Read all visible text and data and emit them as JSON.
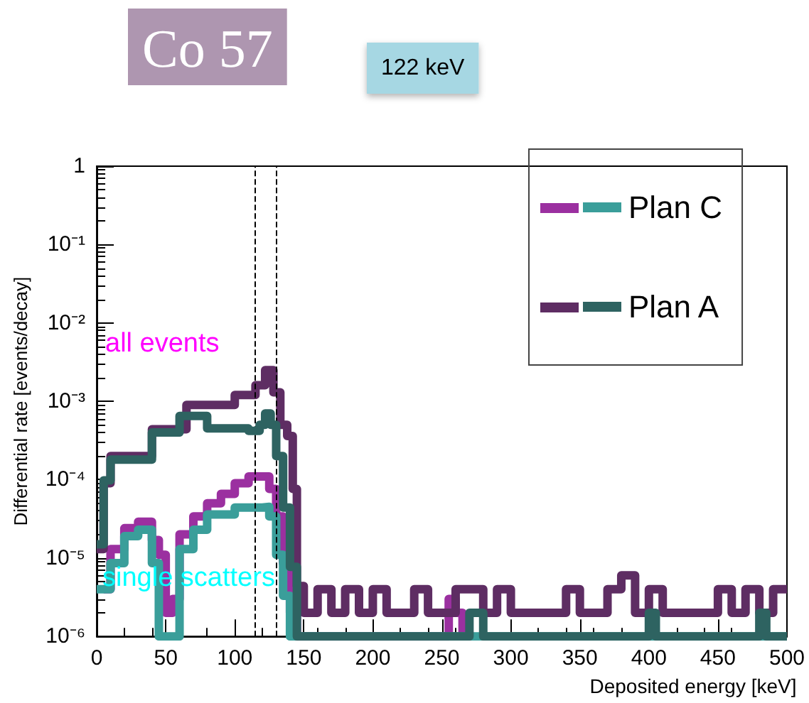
{
  "chart_data": {
    "type": "step",
    "title": "Co 57",
    "subtitle": "122 keV",
    "xlabel": "Deposited energy [keV]",
    "ylabel": "Differential rate [events/decay]",
    "annotations": [
      "all events",
      "single scatters"
    ],
    "log": "y",
    "grid": false,
    "legend": "top right",
    "marker": "none",
    "xlim": [
      0,
      500
    ],
    "xticks": [
      0,
      50,
      100,
      150,
      200,
      250,
      300,
      350,
      400,
      450,
      500
    ],
    "ylim": [
      1e-06,
      1
    ],
    "yticks": [
      {
        "value": 1e-06,
        "label": "10⁻⁶"
      },
      {
        "value": 1e-05,
        "label": "10⁻⁵"
      },
      {
        "value": 0.0001,
        "label": "10⁻⁴"
      },
      {
        "value": 0.001,
        "label": "10⁻³"
      },
      {
        "value": 0.01,
        "label": "10⁻²"
      },
      {
        "value": 0.1,
        "label": "10⁻¹"
      },
      1
    ],
    "ref_lines": [
      {
        "axis": "x",
        "value": 115,
        "color": "#000000",
        "line_style": "dashed"
      },
      {
        "axis": "x",
        "value": 130,
        "color": "#000000",
        "line_style": "dashed"
      }
    ],
    "series": [
      {
        "color": "#9b30a0",
        "x": [
          5,
          10,
          20,
          30,
          40,
          45,
          50,
          55,
          60,
          70,
          80,
          90,
          100,
          110,
          120,
          125,
          130,
          135,
          140,
          145,
          255,
          260,
          265
        ],
        "values": [
          4e-06,
          1.3e-05,
          2.4e-05,
          2.9e-05,
          1.7e-05,
          1.1e-05,
          2e-06,
          3e-06,
          2e-05,
          3.4e-05,
          5e-05,
          6.6e-05,
          9e-05,
          0.00011,
          0.00011,
          7.6e-05,
          3.4e-05,
          8.6e-06,
          2e-06,
          1e-06,
          3e-06,
          2e-06,
          1e-06
        ]
      },
      {
        "name": "Plan C",
        "color": "#3a9e9a",
        "x": [
          0,
          5,
          10,
          20,
          30,
          40,
          45,
          55,
          60,
          70,
          80,
          100,
          120,
          125,
          130,
          135,
          140,
          500
        ],
        "values": [
          4e-06,
          4e-06,
          8.6e-06,
          1.9e-05,
          2.3e-05,
          8.6e-06,
          1e-06,
          1e-06,
          1.3e-05,
          2.3e-05,
          3.6e-05,
          4.4e-05,
          4.5e-05,
          3.4e-05,
          1.1e-05,
          3.3e-06,
          1e-06,
          1e-06
        ]
      },
      {
        "color": "#5e2d63",
        "x": [
          0,
          5,
          10,
          40,
          65,
          100,
          115,
          122,
          128,
          133,
          138,
          142,
          145,
          150,
          160,
          170,
          180,
          190,
          200,
          210,
          220,
          230,
          240,
          250,
          260,
          270,
          280,
          290,
          300,
          310,
          320,
          330,
          340,
          350,
          360,
          370,
          380,
          390,
          400,
          410,
          420,
          430,
          440,
          450,
          460,
          470,
          480,
          490,
          500
        ],
        "values": [
          1.3e-05,
          9e-05,
          0.0002,
          0.00044,
          0.0009,
          0.0012,
          0.0016,
          0.0025,
          0.0013,
          0.0005,
          0.00036,
          7.6e-05,
          4.4e-06,
          2e-06,
          4e-06,
          2e-06,
          4e-06,
          2e-06,
          4e-06,
          2e-06,
          2e-06,
          4e-06,
          2e-06,
          2e-06,
          4e-06,
          4e-06,
          2e-06,
          4e-06,
          2e-06,
          2e-06,
          2e-06,
          2e-06,
          4e-06,
          2e-06,
          2e-06,
          4e-06,
          6e-06,
          2e-06,
          4e-06,
          2e-06,
          2e-06,
          2e-06,
          2e-06,
          4e-06,
          2e-06,
          4e-06,
          2e-06,
          4e-06,
          4e-06
        ]
      },
      {
        "name": "Plan A",
        "color": "#2e6361",
        "x": [
          0,
          5,
          10,
          40,
          60,
          80,
          110,
          118,
          122,
          126,
          130,
          135,
          140,
          145,
          265,
          270,
          280,
          395,
          400,
          405,
          475,
          480,
          485,
          500
        ],
        "values": [
          1.5e-05,
          9.8e-05,
          0.00018,
          0.0004,
          0.00065,
          0.00045,
          0.00042,
          0.0005,
          0.0007,
          0.0005,
          0.0002,
          4.4e-05,
          7.7e-06,
          1e-06,
          1e-06,
          2e-06,
          1e-06,
          1e-06,
          2e-06,
          1e-06,
          1e-06,
          2e-06,
          1e-06,
          1e-06
        ]
      }
    ]
  }
}
